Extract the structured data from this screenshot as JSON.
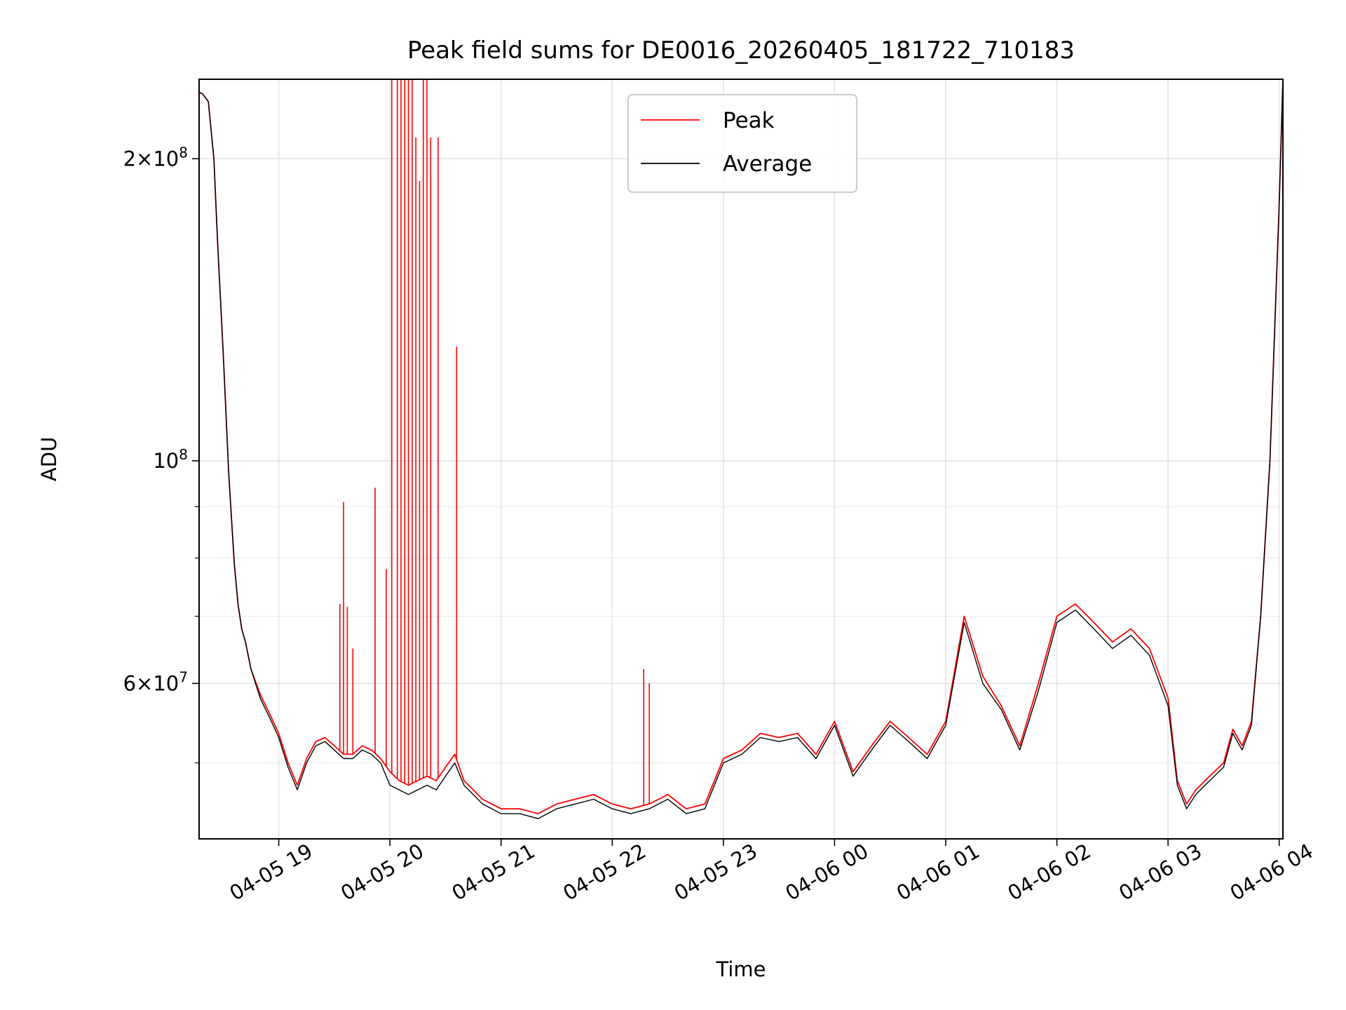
{
  "chart_data": {
    "type": "line",
    "title": "Peak field sums for DE0016_20260405_181722_710183",
    "xlabel": "Time",
    "ylabel": "ADU",
    "yscale": "log",
    "ylim": [
      42000000,
      240000000
    ],
    "xlim": [
      "2026-04-05 18:17",
      "2026-04-06 04:02"
    ],
    "x_ticks": [
      "04-05 19",
      "04-05 20",
      "04-05 21",
      "04-05 22",
      "04-05 23",
      "04-06 00",
      "04-06 01",
      "04-06 02",
      "04-06 03",
      "04-06 04"
    ],
    "y_major_ticks": [
      {
        "value": 60000000,
        "mantissa": "6",
        "exponent": "7"
      },
      {
        "value": 100000000,
        "mantissa": "",
        "exponent": "8"
      },
      {
        "value": 200000000,
        "mantissa": "2",
        "exponent": "8"
      }
    ],
    "y_minor_ticks": [
      50000000,
      70000000,
      80000000,
      90000000,
      300000000
    ],
    "grid": true,
    "legend_position": "top-center",
    "x": [
      "2026-04-05 18:17",
      "2026-04-05 18:19",
      "2026-04-05 18:22",
      "2026-04-05 18:25",
      "2026-04-05 18:27",
      "2026-04-05 18:30",
      "2026-04-05 18:33",
      "2026-04-05 18:36",
      "2026-04-05 18:38",
      "2026-04-05 18:40",
      "2026-04-05 18:42",
      "2026-04-05 18:45",
      "2026-04-05 18:50",
      "2026-04-05 18:55",
      "2026-04-05 19:00",
      "2026-04-05 19:05",
      "2026-04-05 19:10",
      "2026-04-05 19:15",
      "2026-04-05 19:20",
      "2026-04-05 19:25",
      "2026-04-05 19:30",
      "2026-04-05 19:35",
      "2026-04-05 19:40",
      "2026-04-05 19:45",
      "2026-04-05 19:50",
      "2026-04-05 19:55",
      "2026-04-05 20:00",
      "2026-04-05 20:05",
      "2026-04-05 20:10",
      "2026-04-05 20:15",
      "2026-04-05 20:20",
      "2026-04-05 20:25",
      "2026-04-05 20:30",
      "2026-04-05 20:35",
      "2026-04-05 20:40",
      "2026-04-05 20:45",
      "2026-04-05 20:50",
      "2026-04-05 20:55",
      "2026-04-05 21:00",
      "2026-04-05 21:10",
      "2026-04-05 21:20",
      "2026-04-05 21:30",
      "2026-04-05 21:40",
      "2026-04-05 21:50",
      "2026-04-05 22:00",
      "2026-04-05 22:10",
      "2026-04-05 22:20",
      "2026-04-05 22:30",
      "2026-04-05 22:40",
      "2026-04-05 22:50",
      "2026-04-05 23:00",
      "2026-04-05 23:10",
      "2026-04-05 23:20",
      "2026-04-05 23:30",
      "2026-04-05 23:40",
      "2026-04-05 23:50",
      "2026-04-06 00:00",
      "2026-04-06 00:10",
      "2026-04-06 00:20",
      "2026-04-06 00:30",
      "2026-04-06 00:40",
      "2026-04-06 00:50",
      "2026-04-06 01:00",
      "2026-04-06 01:10",
      "2026-04-06 01:20",
      "2026-04-06 01:30",
      "2026-04-06 01:40",
      "2026-04-06 01:50",
      "2026-04-06 02:00",
      "2026-04-06 02:10",
      "2026-04-06 02:20",
      "2026-04-06 02:30",
      "2026-04-06 02:40",
      "2026-04-06 02:50",
      "2026-04-06 03:00",
      "2026-04-06 03:05",
      "2026-04-06 03:10",
      "2026-04-06 03:15",
      "2026-04-06 03:20",
      "2026-04-06 03:25",
      "2026-04-06 03:30",
      "2026-04-06 03:35",
      "2026-04-06 03:40",
      "2026-04-06 03:45",
      "2026-04-06 03:50",
      "2026-04-06 03:55",
      "2026-04-06 04:00",
      "2026-04-06 04:02"
    ],
    "series": [
      {
        "name": "Peak",
        "color": "#ff0000",
        "values": [
          233000000,
          232000000,
          228000000,
          200000000,
          165000000,
          128000000,
          97000000,
          79000000,
          72000000,
          68000000,
          66000000,
          62000000,
          58500000,
          56000000,
          53500000,
          50000000,
          47500000,
          50500000,
          52500000,
          53000000,
          52000000,
          51000000,
          51000000,
          52000000,
          51500000,
          50500000,
          49000000,
          48000000,
          47500000,
          48000000,
          48500000,
          48000000,
          49500000,
          51000000,
          48000000,
          47000000,
          46000000,
          45500000,
          45000000,
          45000000,
          44500000,
          45500000,
          46000000,
          46500000,
          45500000,
          45000000,
          45500000,
          46500000,
          45000000,
          45500000,
          50500000,
          51500000,
          53500000,
          53000000,
          53500000,
          51000000,
          55000000,
          49000000,
          52000000,
          55000000,
          53000000,
          51000000,
          55000000,
          70000000,
          61000000,
          57000000,
          52000000,
          60000000,
          70000000,
          72000000,
          69000000,
          66000000,
          68000000,
          65000000,
          58000000,
          48000000,
          45500000,
          47000000,
          48000000,
          49000000,
          50000000,
          54000000,
          52000000,
          55000000,
          70000000,
          100000000,
          180000000,
          240000000
        ]
      },
      {
        "name": "Average",
        "color": "#000000",
        "values": [
          233000000,
          232000000,
          228000000,
          200000000,
          165000000,
          128000000,
          97000000,
          79000000,
          72000000,
          68000000,
          66000000,
          62000000,
          58000000,
          55500000,
          53000000,
          49500000,
          47000000,
          50000000,
          52000000,
          52500000,
          51500000,
          50500000,
          50500000,
          51500000,
          51000000,
          50000000,
          47500000,
          47000000,
          46500000,
          47000000,
          47500000,
          47000000,
          48500000,
          50000000,
          47500000,
          46500000,
          45500000,
          45000000,
          44500000,
          44500000,
          44000000,
          45000000,
          45500000,
          46000000,
          45000000,
          44500000,
          45000000,
          46000000,
          44500000,
          45000000,
          50000000,
          51000000,
          53000000,
          52500000,
          53000000,
          50500000,
          54500000,
          48500000,
          51500000,
          54500000,
          52500000,
          50500000,
          54500000,
          69000000,
          60000000,
          56500000,
          51500000,
          59000000,
          69000000,
          71000000,
          68000000,
          65000000,
          67000000,
          64000000,
          57000000,
          47500000,
          45000000,
          46500000,
          47500000,
          48500000,
          49500000,
          53500000,
          51500000,
          54500000,
          70000000,
          100000000,
          180000000,
          240000000
        ]
      }
    ],
    "spikes": {
      "series": "Peak",
      "x": [
        "2026-04-05 19:33",
        "2026-04-05 19:35",
        "2026-04-05 19:37",
        "2026-04-05 19:40",
        "2026-04-05 19:52",
        "2026-04-05 19:58",
        "2026-04-05 20:01",
        "2026-04-05 20:04",
        "2026-04-05 20:06",
        "2026-04-05 20:08",
        "2026-04-05 20:10",
        "2026-04-05 20:12",
        "2026-04-05 20:14",
        "2026-04-05 20:16",
        "2026-04-05 20:18",
        "2026-04-05 20:20",
        "2026-04-05 20:22",
        "2026-04-05 20:26",
        "2026-04-05 20:36",
        "2026-04-05 22:17",
        "2026-04-05 22:20"
      ],
      "values": [
        72000000,
        91000000,
        71500000,
        65000000,
        94000000,
        78000000,
        240000000,
        240000000,
        240000000,
        240000000,
        240000000,
        240000000,
        210000000,
        190000000,
        240000000,
        240000000,
        210000000,
        210000000,
        130000000,
        62000000,
        60000000
      ]
    }
  }
}
